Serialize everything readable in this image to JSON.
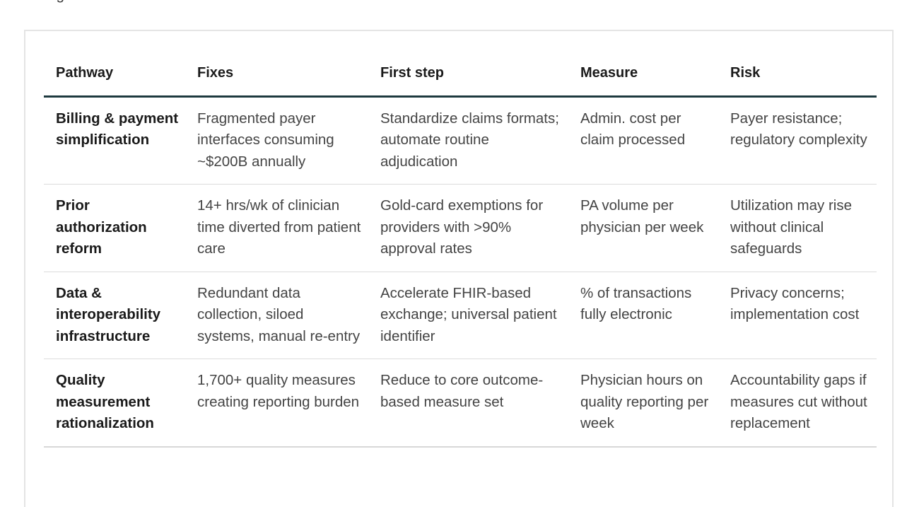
{
  "intro": {
    "text": "wrong."
  },
  "table": {
    "headers": [
      "Pathway",
      "Fixes",
      "First step",
      "Measure",
      "Risk"
    ],
    "rows": [
      {
        "pathway": "Billing & payment simplification",
        "fixes": "Fragmented payer interfaces consuming ~$200B annually",
        "first_step": "Standardize claims formats; automate routine adjudication",
        "measure": "Admin. cost per claim processed",
        "risk": "Payer resistance; regulatory complexity"
      },
      {
        "pathway": "Prior authorization reform",
        "fixes": "14+ hrs/wk of clinician time diverted from patient care",
        "first_step": "Gold-card exemptions for providers with >90% approval rates",
        "measure": "PA volume per physician per week",
        "risk": "Utilization may rise without clinical safeguards"
      },
      {
        "pathway": "Data & interoperability infrastructure",
        "fixes": "Redundant data collection, siloed systems, manual re-entry",
        "first_step": "Accelerate FHIR-based exchange; universal patient identifier",
        "measure": "% of transactions fully electronic",
        "risk": "Privacy concerns; implementation cost"
      },
      {
        "pathway": "Quality measurement rationalization",
        "fixes": "1,700+ quality measures creating reporting burden",
        "first_step": "Reduce to core outcome-based measure set",
        "measure": "Physician hours on quality reporting per week",
        "risk": "Accountability gaps if measures cut without replacement"
      }
    ]
  }
}
